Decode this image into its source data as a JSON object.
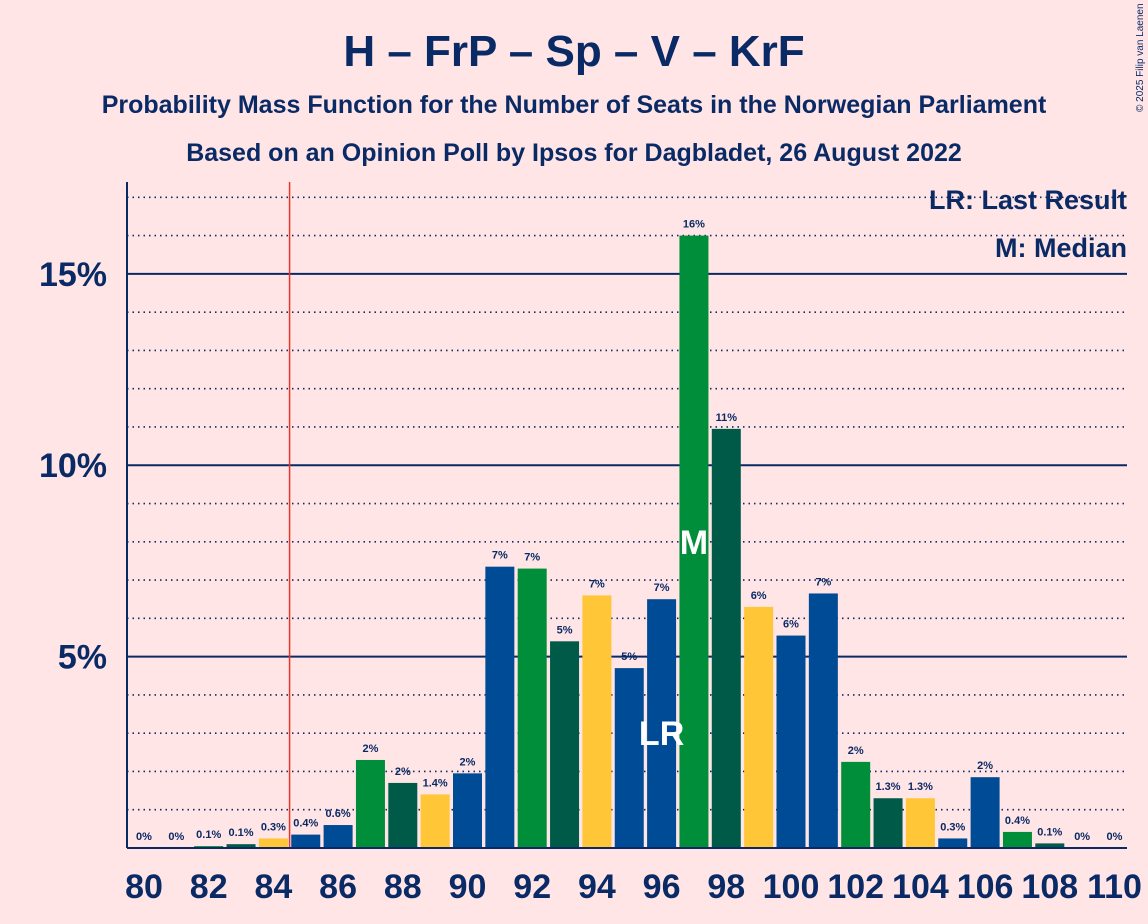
{
  "title": "H – FrP – Sp – V – KrF",
  "subtitle1": "Probability Mass Function for the Number of Seats in the Norwegian Parliament",
  "subtitle2": "Based on an Opinion Poll by Ipsos for Dagbladet, 26 August 2022",
  "copyright": "© 2025 Filip van Laenen",
  "legend": {
    "last_result": "LR: Last Result",
    "median": "M: Median"
  },
  "markers": {
    "last_result_text": "LR",
    "median_text": "M",
    "last_result_seat": 96,
    "median_seat": 97,
    "majority_line_seat": 84.5
  },
  "colors": {
    "background": "#FFE5E5",
    "text": "#0A2A66",
    "majority_line": "#E8352C",
    "axis": "#0A2A66",
    "H": "#004B95",
    "FrP": "#005A48",
    "Sp": "#008E3A",
    "V": "#FFC638"
  },
  "chart_data": {
    "type": "bar",
    "title": "H – FrP – Sp – V – KrF",
    "xlabel": "",
    "ylabel": "",
    "ylim": [
      0,
      17.4
    ],
    "ytick_values": [
      5,
      10,
      15
    ],
    "yticks": [
      "5%",
      "10%",
      "15%"
    ],
    "grid": "dotted minor lines every 1%, solid lines at 5%, 10%, 15%",
    "legend_position": "top-right",
    "xtick_values": [
      80,
      82,
      84,
      86,
      88,
      90,
      92,
      94,
      96,
      98,
      100,
      102,
      104,
      106,
      108,
      110
    ],
    "xticks": [
      "80",
      "82",
      "84",
      "86",
      "88",
      "90",
      "92",
      "94",
      "96",
      "98",
      "100",
      "102",
      "104",
      "106",
      "108",
      "110"
    ],
    "categories": [
      80,
      81,
      82,
      83,
      84,
      85,
      86,
      87,
      88,
      89,
      90,
      91,
      92,
      93,
      94,
      95,
      96,
      97,
      98,
      99,
      100,
      101,
      102,
      103,
      104,
      105,
      106,
      107,
      108,
      109,
      110
    ],
    "values": [
      0,
      0,
      0.05,
      0.1,
      0.25,
      0.35,
      0.6,
      2.3,
      1.7,
      1.4,
      1.95,
      7.35,
      7.3,
      5.4,
      6.6,
      4.7,
      6.5,
      16.0,
      10.95,
      6.3,
      5.55,
      6.65,
      2.25,
      1.3,
      1.3,
      0.25,
      1.85,
      0.42,
      0.12,
      0,
      0
    ],
    "labels": [
      "0%",
      "0%",
      "0.1%",
      "0.1%",
      "0.3%",
      "0.4%",
      "0.6%",
      "2%",
      "2%",
      "1.4%",
      "2%",
      "7%",
      "7%",
      "5%",
      "7%",
      "5%",
      "7%",
      "16%",
      "11%",
      "6%",
      "6%",
      "7%",
      "2%",
      "1.3%",
      "1.3%",
      "0.3%",
      "2%",
      "0.4%",
      "0.1%",
      "0%",
      "0%"
    ],
    "bar_colors": [
      "H",
      "FrP",
      "Sp",
      "FrP",
      "V",
      "H",
      "H",
      "Sp",
      "FrP",
      "V",
      "H",
      "H",
      "Sp",
      "FrP",
      "V",
      "H",
      "H",
      "Sp",
      "FrP",
      "V",
      "H",
      "H",
      "Sp",
      "FrP",
      "V",
      "H",
      "H",
      "Sp",
      "FrP",
      "V",
      "H"
    ]
  }
}
